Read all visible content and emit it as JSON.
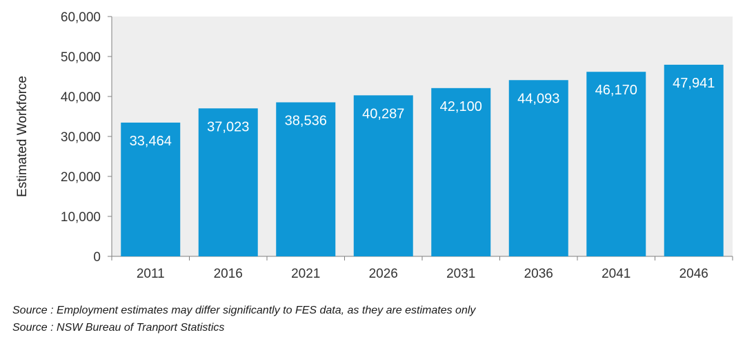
{
  "chart_data": {
    "type": "bar",
    "categories": [
      "2011",
      "2016",
      "2021",
      "2026",
      "2031",
      "2036",
      "2041",
      "2046"
    ],
    "values": [
      33464,
      37023,
      38536,
      40287,
      42100,
      44093,
      46170,
      47941
    ],
    "data_labels": [
      "33,464",
      "37,023",
      "38,536",
      "40,287",
      "42,100",
      "44,093",
      "46,170",
      "47,941"
    ],
    "title": "",
    "xlabel": "",
    "ylabel": "Estimated Workforce",
    "ylim": [
      0,
      60000
    ],
    "yticks": [
      0,
      10000,
      20000,
      30000,
      40000,
      50000,
      60000
    ],
    "ytick_labels": [
      "0",
      "10,000",
      "20,000",
      "30,000",
      "40,000",
      "50,000",
      "60,000"
    ],
    "grid": false,
    "legend": "none",
    "bar_color": "#0f97d6",
    "plot_background": "#eeeeee"
  },
  "notes": [
    "Source : Employment estimates may differ significantly to FES data, as they are estimates only",
    "Source : NSW Bureau of Tranport Statistics"
  ]
}
